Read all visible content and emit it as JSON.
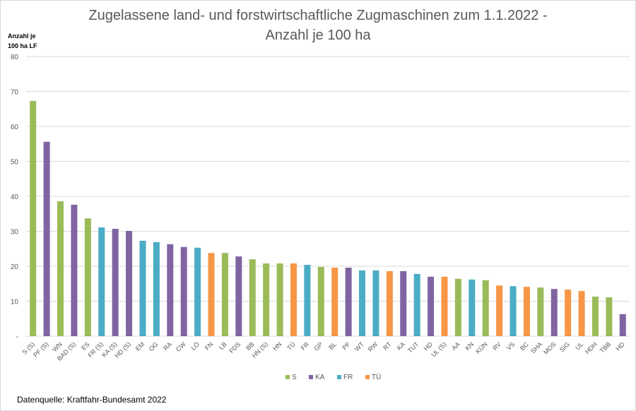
{
  "chart_data": {
    "type": "bar",
    "title": "Zugelassene land- und forstwirtschaftliche Zugmaschinen zum 1.1.2022 - Anzahl je 100 ha",
    "title_lines": [
      "Zugelassene land- und forstwirtschaftliche Zugmaschinen zum 1.1.2022 -",
      "Anzahl je 100 ha"
    ],
    "ylabel_lines": [
      "Anzahl je",
      "100 ha LF"
    ],
    "xlabel": "",
    "ylim": [
      0,
      80
    ],
    "yticks": [
      0,
      10,
      20,
      30,
      40,
      50,
      60,
      70,
      80
    ],
    "ytick_labels": [
      "-",
      "10",
      "20",
      "30",
      "40",
      "50",
      "60",
      "70",
      "80"
    ],
    "grid": true,
    "legend_position": "bottom",
    "legend": [
      {
        "name": "S",
        "color": "#9bbb59"
      },
      {
        "name": "KA",
        "color": "#8064a2"
      },
      {
        "name": "FR",
        "color": "#4bacc6"
      },
      {
        "name": "TÜ",
        "color": "#f79646"
      }
    ],
    "categories": [
      "S (S)",
      "PF (S)",
      "WN",
      "BAD (S)",
      "ES",
      "FR (S)",
      "KA (S)",
      "HD (S)",
      "EM",
      "OG",
      "RA",
      "CW",
      "LÖ",
      "FN",
      "LB",
      "FDS",
      "BB",
      "HN (S)",
      "HN",
      "TÜ",
      "FR",
      "GP",
      "BL",
      "PF",
      "WT",
      "RW",
      "RT",
      "KA",
      "TUT",
      "HD",
      "UL (S)",
      "AA",
      "KN",
      "KÜN",
      "RV",
      "VS",
      "BC",
      "SHA",
      "MOS",
      "SIG",
      "UL",
      "HDH",
      "TBB",
      "HD"
    ],
    "groups": [
      "S",
      "KA",
      "S",
      "KA",
      "S",
      "FR",
      "KA",
      "KA",
      "FR",
      "FR",
      "KA",
      "KA",
      "FR",
      "TÜ",
      "S",
      "KA",
      "S",
      "S",
      "S",
      "TÜ",
      "FR",
      "S",
      "TÜ",
      "KA",
      "FR",
      "FR",
      "TÜ",
      "KA",
      "FR",
      "KA",
      "TÜ",
      "S",
      "FR",
      "S",
      "TÜ",
      "FR",
      "TÜ",
      "S",
      "KA",
      "TÜ",
      "TÜ",
      "S",
      "S",
      "KA"
    ],
    "values": [
      67.3,
      55.6,
      38.6,
      37.6,
      33.7,
      31.1,
      30.7,
      30.1,
      27.3,
      26.9,
      26.3,
      25.5,
      25.3,
      23.8,
      23.8,
      22.8,
      22.0,
      20.8,
      20.8,
      20.8,
      20.4,
      19.8,
      19.6,
      19.6,
      18.8,
      18.8,
      18.6,
      18.6,
      17.8,
      17.0,
      17.0,
      16.4,
      16.2,
      16.0,
      14.5,
      14.3,
      14.1,
      13.9,
      13.5,
      13.3,
      12.9,
      11.3,
      11.1,
      6.3
    ]
  },
  "source": "Datenquelle: Kraftfahr-Bundesamt 2022"
}
